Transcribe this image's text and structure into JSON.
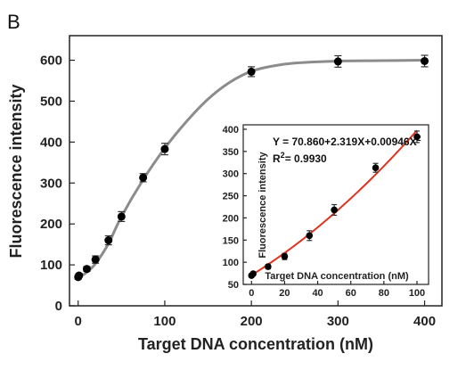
{
  "panel_label": "B",
  "chart_data": [
    {
      "type": "scatter",
      "xlabel": "Target DNA concentration (nM)",
      "ylabel": "Fluorescence intensity",
      "xlim": [
        -10,
        420
      ],
      "ylim": [
        0,
        660
      ],
      "xticks": [
        0,
        100,
        200,
        300,
        400
      ],
      "yticks": [
        0,
        100,
        200,
        300,
        400,
        500,
        600
      ],
      "series": [
        {
          "points": [
            {
              "x": 0,
              "y": 70,
              "err": 5
            },
            {
              "x": 1,
              "y": 74,
              "err": 5
            },
            {
              "x": 10,
              "y": 90,
              "err": 6
            },
            {
              "x": 20,
              "y": 113,
              "err": 9
            },
            {
              "x": 35,
              "y": 160,
              "err": 11
            },
            {
              "x": 50,
              "y": 218,
              "err": 12
            },
            {
              "x": 75,
              "y": 313,
              "err": 10
            },
            {
              "x": 100,
              "y": 383,
              "err": 14
            },
            {
              "x": 200,
              "y": 572,
              "err": 12
            },
            {
              "x": 300,
              "y": 597,
              "err": 14
            },
            {
              "x": 400,
              "y": 598,
              "err": 14
            }
          ],
          "color": "#000000"
        }
      ],
      "fit_curve": {
        "color": "#8c8c8c",
        "points": [
          [
            0,
            68
          ],
          [
            10,
            82
          ],
          [
            20,
            103
          ],
          [
            35,
            152
          ],
          [
            50,
            218
          ],
          [
            75,
            308
          ],
          [
            100,
            385
          ],
          [
            125,
            450
          ],
          [
            150,
            505
          ],
          [
            175,
            546
          ],
          [
            200,
            573
          ],
          [
            225,
            586
          ],
          [
            250,
            593
          ],
          [
            300,
            598
          ],
          [
            350,
            599
          ],
          [
            400,
            600
          ]
        ]
      }
    },
    {
      "type": "scatter",
      "inset": true,
      "xlabel": "Target DNA concentration (nM)",
      "ylabel": "Fluorescence intensity",
      "xlim": [
        -5,
        107
      ],
      "ylim": [
        50,
        410
      ],
      "xticks": [
        0,
        20,
        40,
        60,
        80,
        100
      ],
      "yticks": [
        50,
        100,
        150,
        200,
        250,
        300,
        350,
        400
      ],
      "series": [
        {
          "points": [
            {
              "x": 0,
              "y": 70,
              "err": 4
            },
            {
              "x": 1,
              "y": 74,
              "err": 4
            },
            {
              "x": 10,
              "y": 90,
              "err": 5
            },
            {
              "x": 20,
              "y": 113,
              "err": 7
            },
            {
              "x": 35,
              "y": 160,
              "err": 11
            },
            {
              "x": 50,
              "y": 218,
              "err": 12
            },
            {
              "x": 75,
              "y": 313,
              "err": 10
            },
            {
              "x": 100,
              "y": 383,
              "err": 13
            }
          ],
          "color": "#000000"
        }
      ],
      "fit_curve": {
        "color": "#e0321e",
        "equation": {
          "a": 70.86,
          "b": 2.319,
          "c": 0.00946,
          "x_range": [
            0,
            100
          ]
        }
      },
      "annotations": {
        "equation": "Y = 70.860+2.319X+0.00946X",
        "equation_sup": "2",
        "r2_prefix": "R",
        "r2_sup": "2",
        "r2_value": "= 0.9930"
      }
    }
  ]
}
